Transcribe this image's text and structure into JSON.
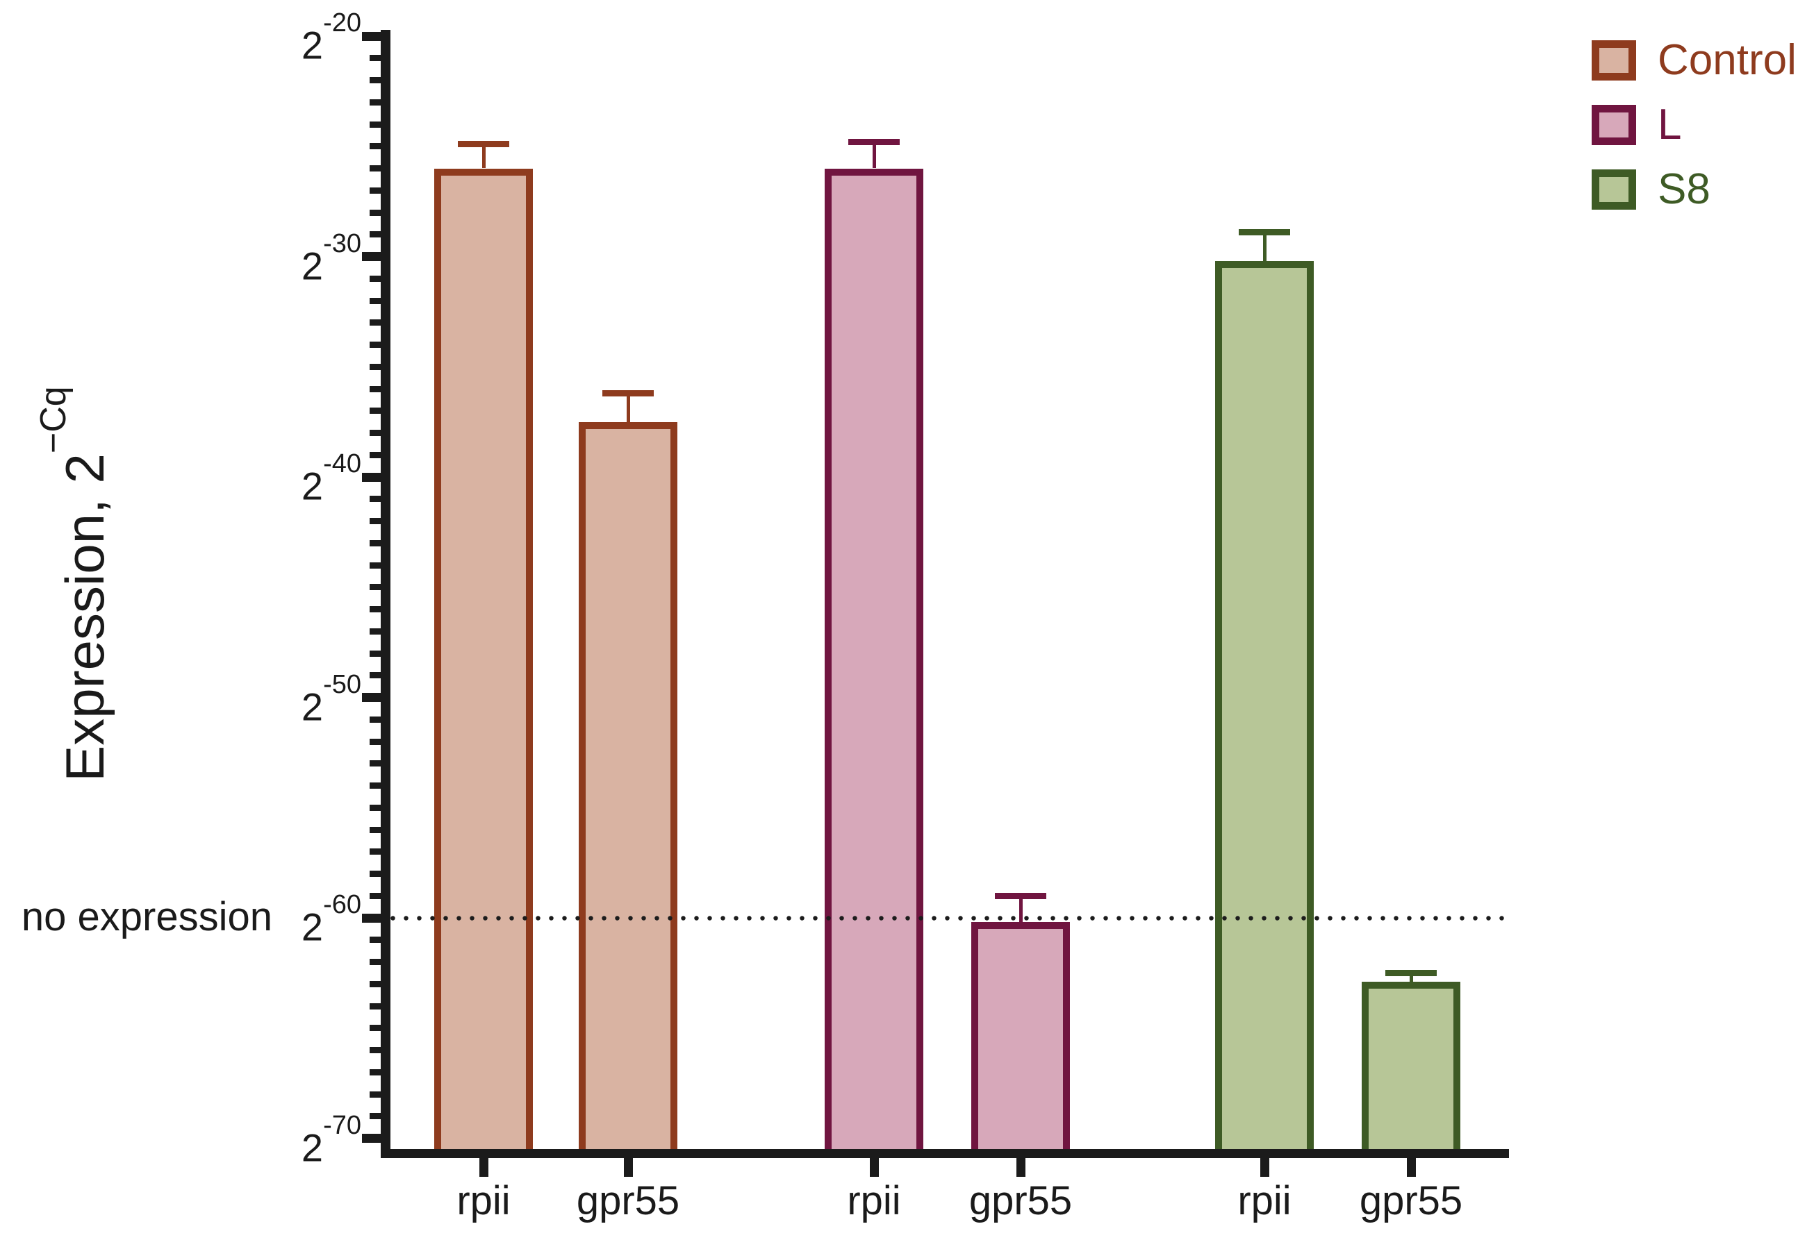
{
  "figure": {
    "y_axis_title_main": "Expression, 2",
    "y_axis_title_sup": "−Cq",
    "no_expression_label": "no expression"
  },
  "chart_data": {
    "type": "bar",
    "title": "",
    "xlabel": "",
    "ylabel": "Expression, 2^−Cq",
    "yscale": "log2",
    "y_base_label": "2",
    "y_major_tick_exponents": [
      -20,
      -30,
      -40,
      -50,
      -60,
      -70
    ],
    "y_minor_tick_step": 1,
    "y_top_exponent": -20,
    "y_bottom_exponent": -70,
    "no_expression_threshold_exponent": -60,
    "grid": "off",
    "legend_position": "top-right",
    "categories": [
      "rpii",
      "gpr55"
    ],
    "series": [
      {
        "name": "Control",
        "fill": "#d9b3a2",
        "stroke": "#8e3b1e",
        "bars": [
          {
            "category": "rpii",
            "exponent": -26.0,
            "error_top_exponent": -24.9
          },
          {
            "category": "gpr55",
            "exponent": -37.5,
            "error_top_exponent": -36.2
          }
        ]
      },
      {
        "name": "L",
        "fill": "#d7a8ba",
        "stroke": "#701540",
        "bars": [
          {
            "category": "rpii",
            "exponent": -26.0,
            "error_top_exponent": -24.8
          },
          {
            "category": "gpr55",
            "exponent": -60.2,
            "error_top_exponent": -59.0
          }
        ]
      },
      {
        "name": "S8",
        "fill": "#b7c697",
        "stroke": "#3e5b25",
        "bars": [
          {
            "category": "rpii",
            "exponent": -30.2,
            "error_top_exponent": -28.9
          },
          {
            "category": "gpr55",
            "exponent": -62.9,
            "error_top_exponent": -62.5
          }
        ]
      }
    ]
  }
}
